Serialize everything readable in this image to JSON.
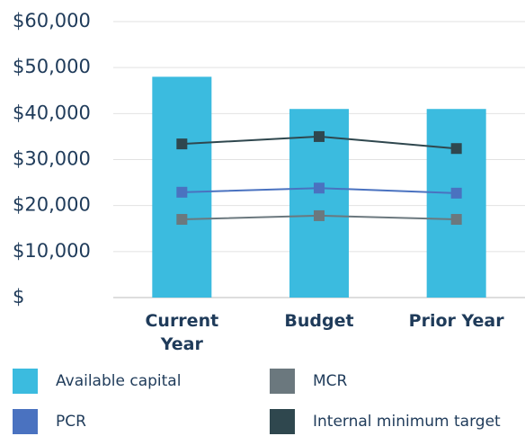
{
  "chart_data": {
    "type": "bar",
    "categories": [
      "Current Year",
      "Budget",
      "Prior Year"
    ],
    "series": [
      {
        "name": "Available capital",
        "type": "bar",
        "color": "#3bbbdf",
        "values": [
          48000,
          41000,
          41000
        ]
      },
      {
        "name": "MCR",
        "type": "line",
        "color": "#6b787e",
        "values": [
          17000,
          17800,
          17000
        ]
      },
      {
        "name": "PCR",
        "type": "line",
        "color": "#4a72c0",
        "values": [
          22900,
          23800,
          22700
        ]
      },
      {
        "name": "Internal minimum target",
        "type": "line",
        "color": "#2f474e",
        "values": [
          33400,
          35000,
          32400
        ]
      }
    ],
    "ylim": [
      0,
      60000
    ],
    "yticks": [
      {
        "value": 0,
        "label": "$"
      },
      {
        "value": 10000,
        "label": "$10,000"
      },
      {
        "value": 20000,
        "label": "$20,000"
      },
      {
        "value": 30000,
        "label": "$30,000"
      },
      {
        "value": 40000,
        "label": "$40,000"
      },
      {
        "value": 50000,
        "label": "$50,000"
      },
      {
        "value": 60000,
        "label": "$60,000"
      }
    ],
    "grid": true
  }
}
